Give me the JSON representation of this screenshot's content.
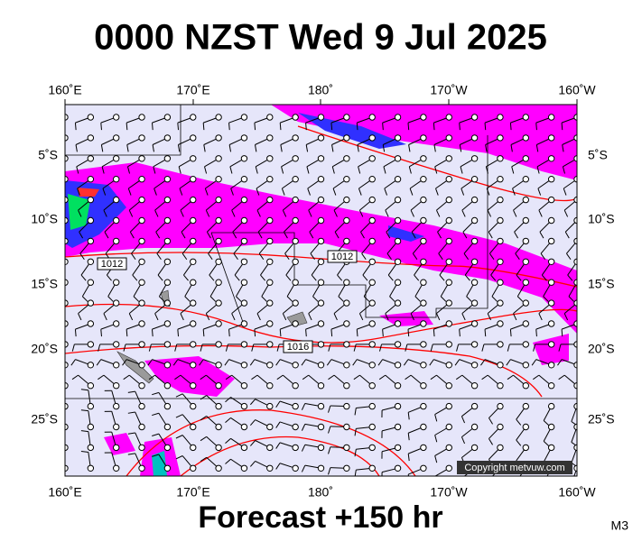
{
  "header": {
    "title": "0000 NZST Wed 9 Jul 2025"
  },
  "map": {
    "lon_labels": [
      "160˚E",
      "170˚E",
      "180˚",
      "170˚W",
      "160˚W"
    ],
    "lat_labels": [
      "5˚S",
      "10˚S",
      "15˚S",
      "20˚S",
      "25˚S"
    ],
    "isobar_labels": [
      "1012",
      "1012",
      "1016"
    ],
    "copyright": "Copyright metvuw.com"
  },
  "footer": {
    "forecast": "Forecast +150 hr",
    "model": "M3"
  }
}
